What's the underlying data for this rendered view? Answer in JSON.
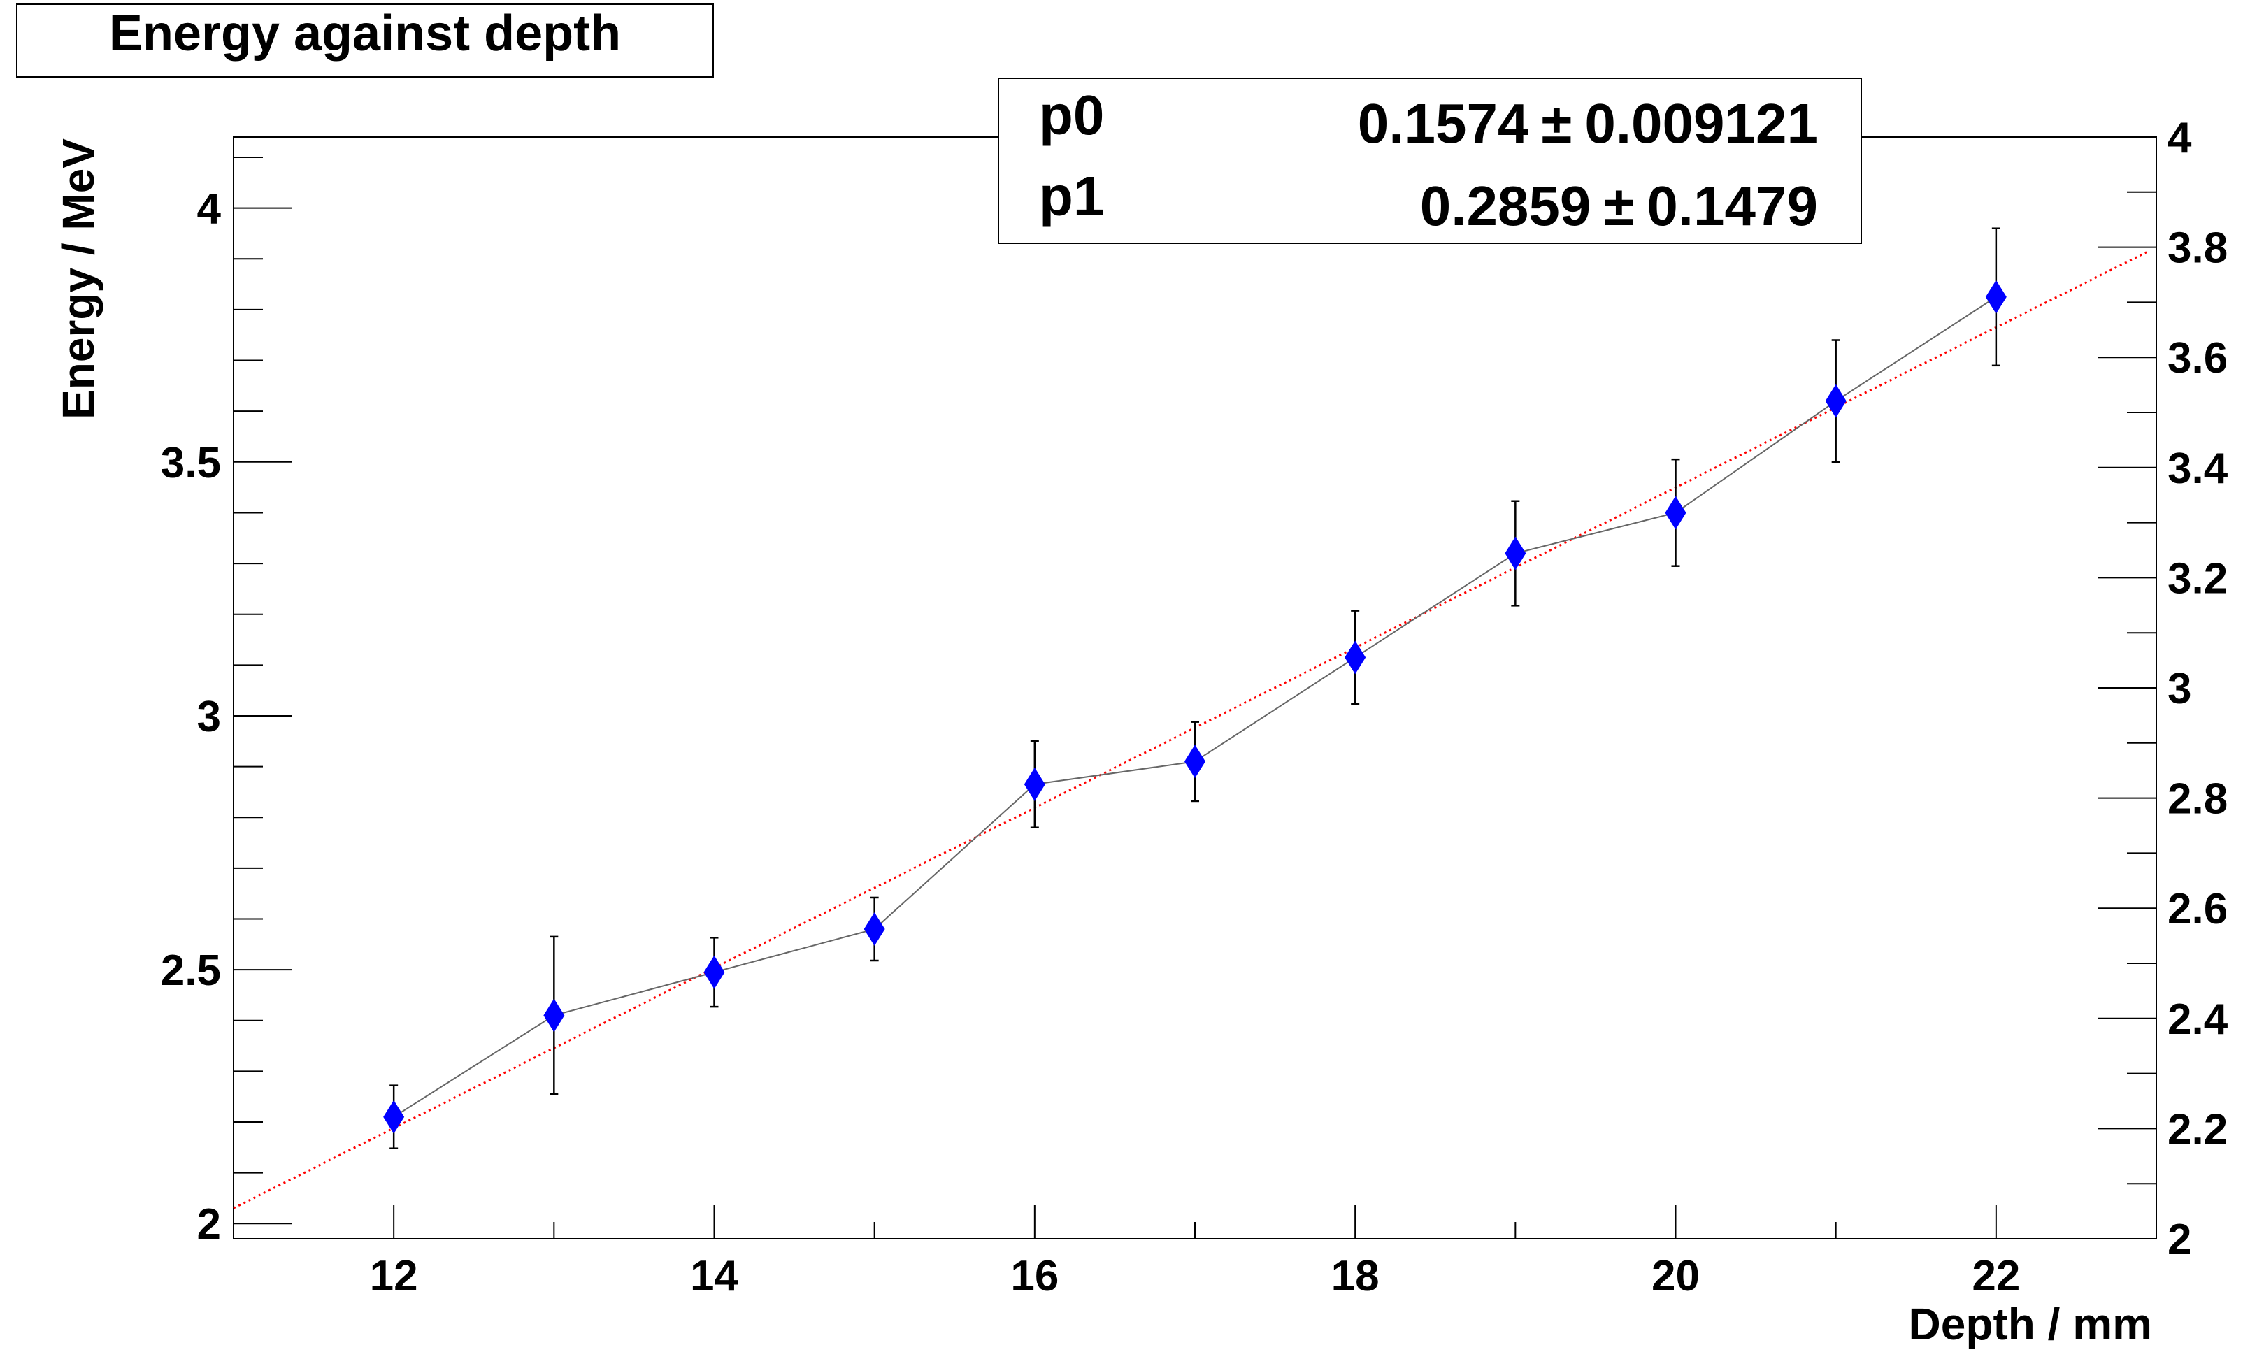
{
  "title": "Energy against depth",
  "chart_data": {
    "type": "scatter",
    "title": "Energy against depth",
    "xlabel": "Depth / mm",
    "ylabel": "Energy / MeV",
    "xlim": [
      11,
      23
    ],
    "ylim": [
      1.97,
      4.14
    ],
    "y2lim": [
      2,
      4
    ],
    "x_ticks": [
      12,
      14,
      16,
      18,
      20,
      22
    ],
    "y_ticks": [
      "2",
      "2.5",
      "3",
      "3.5",
      "4"
    ],
    "y2_ticks": [
      "2",
      "2.2",
      "2.4",
      "2.6",
      "2.8",
      "3",
      "3.2",
      "3.4",
      "3.6",
      "3.8",
      "4"
    ],
    "series": [
      {
        "x": [
          12,
          13,
          14,
          15,
          16,
          17,
          18,
          19,
          20,
          21,
          22
        ],
        "y": [
          2.21,
          2.41,
          2.495,
          2.58,
          2.865,
          2.91,
          3.115,
          3.32,
          3.4,
          3.62,
          3.825
        ],
        "y_err": [
          0.062,
          0.155,
          0.068,
          0.062,
          0.085,
          0.078,
          0.092,
          0.103,
          0.105,
          0.12,
          0.135
        ],
        "marker": "diamond",
        "color": "#0000ff",
        "line_color": "#666666"
      }
    ],
    "fit": {
      "color": "#ff0000",
      "params": [
        {
          "name": "p0",
          "value": "0.1574",
          "error": "0.009121"
        },
        {
          "name": "p1",
          "value": "0.2859",
          "error": "0.1479"
        }
      ]
    },
    "grid": false,
    "legend": "top-center"
  }
}
